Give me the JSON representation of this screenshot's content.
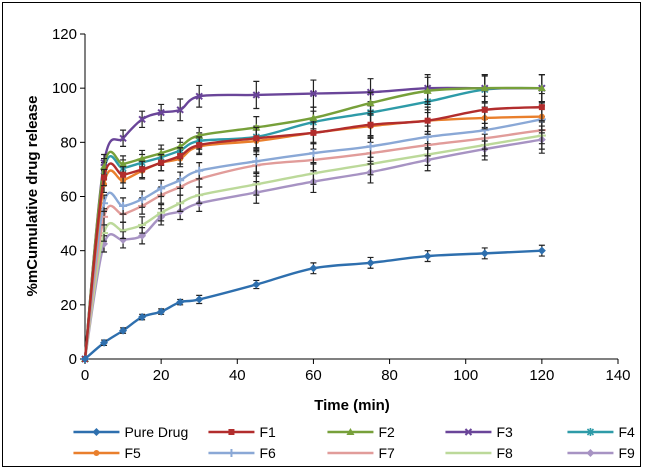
{
  "chart_data": {
    "type": "line",
    "title": "",
    "xlabel": "Time (min)",
    "ylabel": "%mCumulative drug release",
    "xlim": [
      0,
      140
    ],
    "ylim": [
      0,
      120
    ],
    "xticks": [
      0,
      20,
      40,
      60,
      80,
      100,
      120,
      140
    ],
    "yticks": [
      0,
      20,
      40,
      60,
      80,
      100,
      120
    ],
    "grid": false,
    "legend_position": "bottom",
    "error_bars": true,
    "x": [
      0,
      5,
      10,
      15,
      20,
      25,
      30,
      45,
      60,
      75,
      90,
      105,
      120
    ],
    "series": [
      {
        "name": "Pure Drug",
        "color": "#2E6FAE",
        "marker": "diamond",
        "values": [
          0,
          6,
          10.5,
          15.5,
          17.5,
          21,
          22,
          27.5,
          33.5,
          35.5,
          38,
          39,
          40
        ],
        "errors": [
          0,
          1,
          1,
          1,
          1,
          1,
          1.5,
          1.5,
          2,
          2,
          2,
          2,
          2
        ]
      },
      {
        "name": "F1",
        "color": "#B22D2D",
        "marker": "square",
        "values": [
          0,
          67,
          68,
          70,
          72.5,
          75,
          79,
          81.5,
          83.5,
          86.5,
          88,
          92,
          93
        ],
        "errors": [
          0,
          3,
          3,
          3,
          3,
          3,
          3,
          4,
          4,
          5,
          5,
          5,
          5
        ]
      },
      {
        "name": "F2",
        "color": "#77A03A",
        "marker": "triangle",
        "values": [
          0,
          71,
          72,
          74,
          76,
          78.5,
          82.5,
          85.5,
          89,
          94.5,
          99,
          100,
          100
        ],
        "errors": [
          0,
          3,
          3,
          3,
          3,
          3,
          3,
          4,
          4,
          4,
          5,
          5,
          5
        ]
      },
      {
        "name": "F3",
        "color": "#6A4599",
        "marker": "x",
        "values": [
          0,
          72.5,
          81.5,
          88.5,
          91,
          92,
          97,
          97.5,
          98,
          98.5,
          100,
          100,
          100
        ],
        "errors": [
          0,
          3,
          3,
          3,
          3,
          4,
          4,
          5,
          5,
          5,
          5,
          5,
          5
        ]
      },
      {
        "name": "F4",
        "color": "#2E9BA8",
        "marker": "star",
        "values": [
          0,
          69.5,
          70.5,
          72.5,
          74.5,
          77,
          80.5,
          82,
          87.5,
          91,
          95,
          99.5,
          100
        ],
        "errors": [
          0,
          3,
          3,
          3,
          3,
          3,
          3,
          4,
          4,
          4,
          4,
          5,
          5
        ]
      },
      {
        "name": "F5",
        "color": "#E97F2C",
        "marker": "circle",
        "values": [
          0,
          64.5,
          66,
          69.5,
          72.5,
          74,
          78.5,
          80.5,
          83.5,
          86,
          88,
          89,
          89.5
        ],
        "errors": [
          0,
          3,
          3,
          3,
          3,
          3,
          3,
          4,
          4,
          4,
          4,
          4,
          5
        ]
      },
      {
        "name": "F6",
        "color": "#8AA8D6",
        "marker": "plus",
        "values": [
          0,
          57.5,
          56.5,
          59,
          63,
          66,
          69.5,
          73,
          76,
          78.5,
          82,
          84.5,
          88.5
        ],
        "errors": [
          0,
          3,
          3,
          3,
          3,
          3,
          3,
          4,
          4,
          4,
          4,
          4,
          5
        ]
      },
      {
        "name": "F7",
        "color": "#E19C9A",
        "marker": "dash",
        "values": [
          0,
          52.5,
          53.5,
          56.5,
          60.5,
          63.5,
          66.5,
          71.5,
          73.5,
          76,
          79,
          81.5,
          84.5
        ],
        "errors": [
          0,
          3,
          3,
          3,
          3,
          3,
          3,
          4,
          4,
          4,
          4,
          4,
          5
        ]
      },
      {
        "name": "F8",
        "color": "#BCD99A",
        "marker": "dash",
        "values": [
          0,
          46.5,
          47.5,
          49.5,
          54,
          57.5,
          60.5,
          64.5,
          68.5,
          72,
          75.5,
          79,
          82.5
        ],
        "errors": [
          0,
          3,
          3,
          3,
          3,
          3,
          3,
          4,
          4,
          4,
          4,
          4,
          5
        ]
      },
      {
        "name": "F9",
        "color": "#A793C3",
        "marker": "diamond",
        "values": [
          0,
          42.5,
          44,
          45.5,
          52.5,
          54.5,
          57.5,
          61.5,
          65.5,
          69,
          73.5,
          77.5,
          81
        ],
        "errors": [
          0,
          3,
          3,
          3,
          3,
          3,
          3,
          4,
          4,
          4,
          4,
          4,
          5
        ]
      }
    ]
  }
}
